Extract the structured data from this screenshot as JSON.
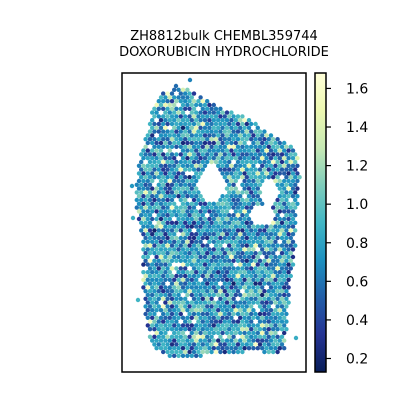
{
  "chart_data": {
    "type": "scatter",
    "title_lines": [
      "ZH8812bulk CHEMBL359744",
      "DOXORUBICIN HYDROCHLORIDE"
    ],
    "xlabel": "",
    "ylabel": "",
    "grid": false,
    "colormap": "YlGnBu",
    "colorbar": {
      "range": [
        0.13,
        1.68
      ],
      "ticks": [
        0.2,
        0.4,
        0.6,
        0.8,
        1.0,
        1.2,
        1.4,
        1.6
      ],
      "tick_labels": [
        "0.2",
        "0.4",
        "0.6",
        "0.8",
        "1.0",
        "1.2",
        "1.4",
        "1.6"
      ],
      "placement": "right"
    },
    "value_distribution": {
      "typical_min": 0.35,
      "typical_max": 1.15,
      "common": 0.75,
      "outlier_max": 1.6
    }
  }
}
